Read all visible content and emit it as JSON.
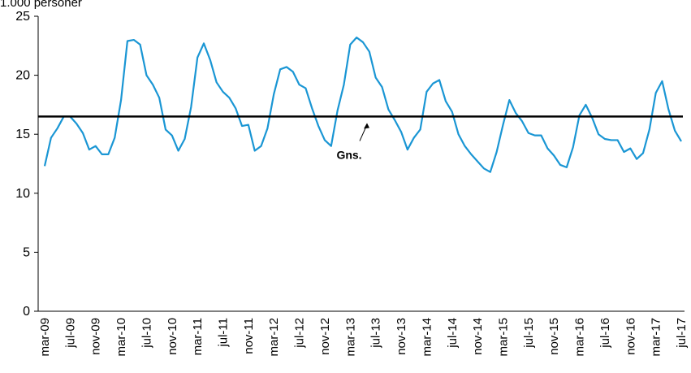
{
  "chart_data": {
    "type": "line",
    "y_axis_label": "1.000 personer",
    "categories": [
      "mar-09",
      null,
      null,
      null,
      "jul-09",
      null,
      null,
      null,
      "nov-09",
      null,
      null,
      null,
      "mar-10",
      null,
      null,
      null,
      "jul-10",
      null,
      null,
      null,
      "nov-10",
      null,
      null,
      null,
      "mar-11",
      null,
      null,
      null,
      "jul-11",
      null,
      null,
      null,
      "nov-11",
      null,
      null,
      null,
      "mar-12",
      null,
      null,
      null,
      "jul-12",
      null,
      null,
      null,
      "nov-12",
      null,
      null,
      null,
      "mar-13",
      null,
      null,
      null,
      "jul-13",
      null,
      null,
      null,
      "nov-13",
      null,
      null,
      null,
      "mar-14",
      null,
      null,
      null,
      "jul-14",
      null,
      null,
      null,
      "nov-14",
      null,
      null,
      null,
      "mar-15",
      null,
      null,
      null,
      "jul-15",
      null,
      null,
      null,
      "nov-15",
      null,
      null,
      null,
      "mar-16",
      null,
      null,
      null,
      "jul-16",
      null,
      null,
      null,
      "nov-16",
      null,
      null,
      null,
      "mar-17",
      null,
      null,
      null,
      "jul-17"
    ],
    "series": [
      {
        "color": "#1a96d4",
        "values": [
          12.3,
          14.7,
          15.5,
          16.5,
          16.5,
          15.9,
          15.1,
          13.7,
          14.0,
          13.3,
          13.3,
          14.7,
          17.9,
          22.9,
          23.0,
          22.6,
          20.0,
          19.2,
          18.1,
          15.4,
          14.9,
          13.6,
          14.6,
          17.3,
          21.5,
          22.7,
          21.3,
          19.4,
          18.6,
          18.1,
          17.2,
          15.7,
          15.8,
          13.6,
          14.0,
          15.5,
          18.4,
          20.5,
          20.7,
          20.3,
          19.2,
          18.9,
          17.2,
          15.7,
          14.5,
          14.0,
          17.0,
          19.2,
          22.6,
          23.2,
          22.8,
          22.0,
          19.8,
          19.0,
          17.1,
          16.2,
          15.2,
          13.7,
          14.7,
          15.4,
          18.6,
          19.3,
          19.6,
          17.8,
          16.9,
          15.0,
          14.0,
          13.3,
          12.7,
          12.1,
          11.8,
          13.5,
          15.8,
          17.9,
          16.8,
          16.1,
          15.1,
          14.9,
          14.9,
          13.8,
          13.2,
          12.4,
          12.2,
          13.9,
          16.6,
          17.5,
          16.4,
          15.0,
          14.6,
          14.5,
          14.5,
          13.5,
          13.8,
          12.9,
          13.4,
          15.4,
          18.5,
          19.5,
          17.1,
          15.3,
          14.4
        ]
      }
    ],
    "average": {
      "value": 16.5,
      "label": "Gns.",
      "color": "#000000"
    },
    "ylim": [
      0,
      25
    ],
    "yticks": [
      0,
      5,
      10,
      15,
      20,
      25
    ]
  }
}
